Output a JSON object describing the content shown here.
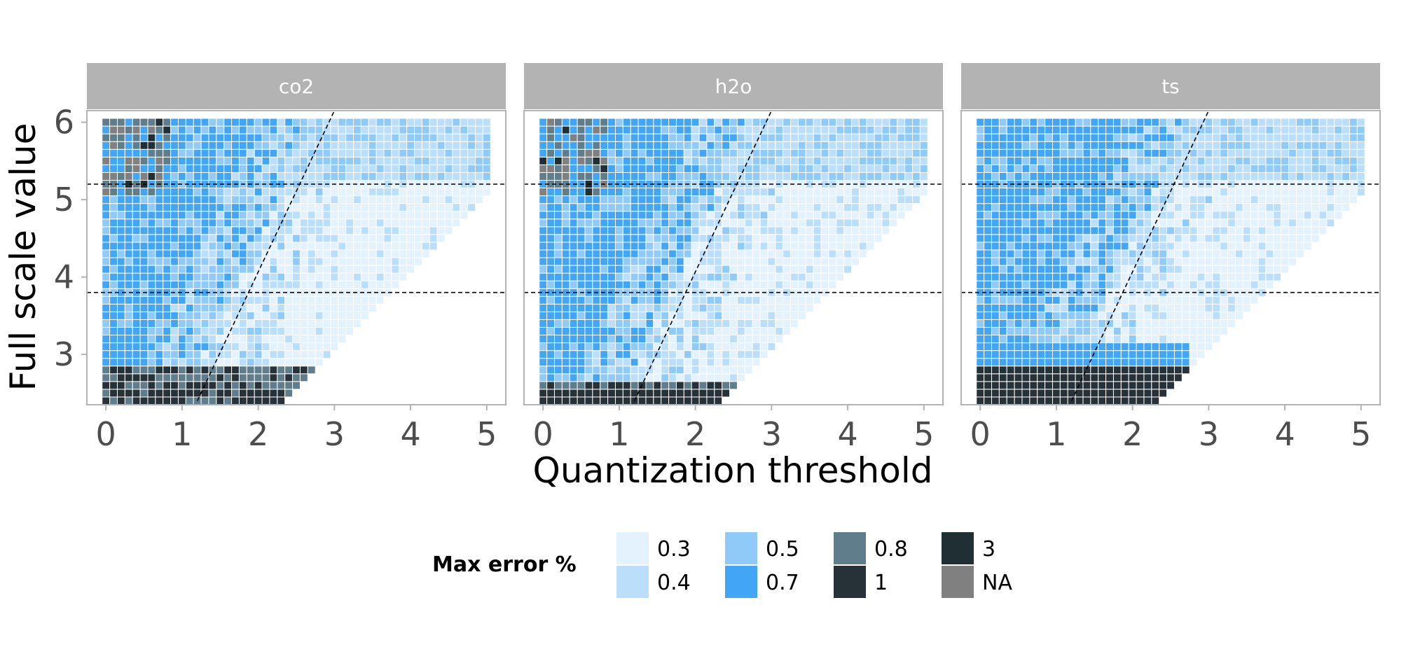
{
  "chart_data": {
    "type": "heatmap",
    "facets": [
      "co2",
      "h2o",
      "ts"
    ],
    "xlabel": "Quantization threshold",
    "ylabel": "Full scale value",
    "x_ticks": [
      0,
      1,
      2,
      3,
      4,
      5
    ],
    "y_ticks": [
      3,
      4,
      5,
      6
    ],
    "xlim": [
      -0.25,
      5.25
    ],
    "ylim": [
      2.35,
      6.15
    ],
    "grid": false,
    "cell_grid": {
      "x_start": 0,
      "x_step": 0.1,
      "x_count": 51,
      "y_start": 2.4,
      "y_step": 0.1,
      "y_count": 37
    },
    "reference_lines": {
      "horizontal": [
        3.8,
        5.2
      ],
      "diagonal": {
        "from": [
          1.2,
          2.4
        ],
        "to": [
          3.0,
          6.15
        ]
      }
    },
    "legend": {
      "title": "Max error %",
      "position": "bottom",
      "entries": [
        {
          "label": "0.3",
          "color": "#E3F2FD"
        },
        {
          "label": "0.4",
          "color": "#BBDEFB"
        },
        {
          "label": "0.5",
          "color": "#90CAF9"
        },
        {
          "label": "0.7",
          "color": "#42A5F5"
        },
        {
          "label": "0.8",
          "color": "#607D8B"
        },
        {
          "label": "1",
          "color": "#263238"
        },
        {
          "label": "3",
          "color": "#1F2F33"
        },
        {
          "label": "NA",
          "color": "#808080"
        }
      ]
    },
    "panels": [
      {
        "name": "co2",
        "row_max_x": [
          2.3,
          2.4,
          2.5,
          2.6,
          2.7,
          2.8,
          2.9,
          3.0,
          3.1,
          3.2,
          3.3,
          3.4,
          3.5,
          3.6,
          3.7,
          3.8,
          3.9,
          4.0,
          4.1,
          4.2,
          4.3,
          4.4,
          4.5,
          4.6,
          4.7,
          4.8,
          4.9,
          5.0,
          5.0,
          5.0,
          5.0,
          5.0,
          5.0,
          5.0,
          5.0,
          5.0,
          5.0
        ],
        "dark_band": {
          "y_max": 2.8,
          "top_rows_value": "1",
          "mid_rows_value": "0.8"
        },
        "sparse_top_left": true
      },
      {
        "name": "h2o",
        "row_max_x": [
          2.3,
          2.4,
          2.5,
          2.6,
          2.7,
          2.8,
          2.9,
          3.0,
          3.1,
          3.2,
          3.3,
          3.4,
          3.5,
          3.6,
          3.7,
          3.8,
          3.9,
          4.0,
          4.1,
          4.2,
          4.3,
          4.4,
          4.5,
          4.6,
          4.7,
          4.8,
          4.9,
          5.0,
          5.0,
          5.0,
          5.0,
          5.0,
          5.0,
          5.0,
          5.0,
          5.0,
          5.0
        ],
        "dark_band": {
          "y_max": 2.6,
          "top_rows_value": "1",
          "mid_rows_value": "0.8"
        },
        "sparse_top_left": true
      },
      {
        "name": "ts",
        "row_max_x": [
          2.3,
          2.4,
          2.5,
          2.6,
          2.7,
          2.8,
          2.9,
          3.0,
          3.1,
          3.2,
          3.3,
          3.4,
          3.5,
          3.6,
          3.7,
          3.8,
          3.9,
          4.0,
          4.1,
          4.2,
          4.3,
          4.4,
          4.5,
          4.6,
          4.7,
          4.8,
          4.9,
          5.0,
          5.0,
          5.0,
          5.0,
          5.0,
          5.0,
          5.0,
          5.0,
          5.0,
          5.0
        ],
        "dark_band": {
          "y_max": 2.8,
          "top_rows_value": "1",
          "mid_rows_value": "1"
        },
        "sparse_top_left": false
      }
    ]
  },
  "colors": {
    "strip_bg": "#B3B3B3",
    "panel_border": "#B3B3B3",
    "reference_line": "#000000"
  }
}
